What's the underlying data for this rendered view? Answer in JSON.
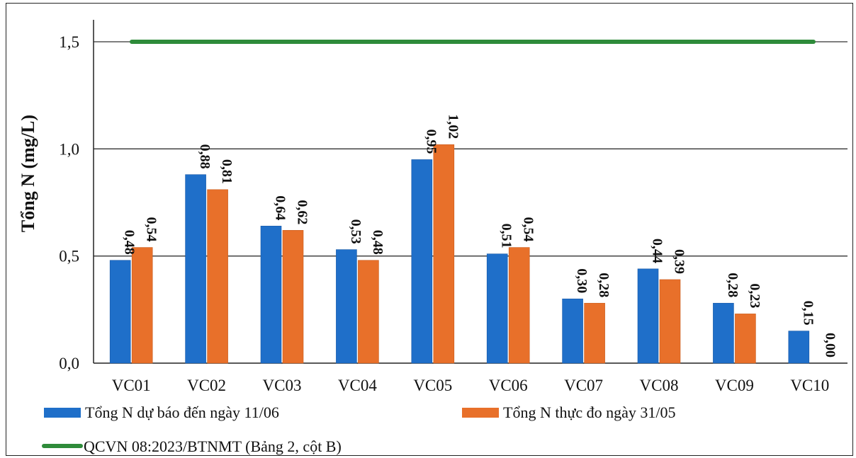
{
  "chart_data": {
    "type": "bar",
    "title": "",
    "xlabel": "",
    "ylabel": "Tổng N (mg/L)",
    "ylim": [
      0,
      1.6
    ],
    "yticks": [
      "0,0",
      "0,5",
      "1,0",
      "1,5"
    ],
    "ytick_values": [
      0,
      0.5,
      1.0,
      1.5
    ],
    "grid": true,
    "legend_placement": "bottom",
    "categories": [
      "VC01",
      "VC02",
      "VC03",
      "VC04",
      "VC05",
      "VC06",
      "VC07",
      "VC08",
      "VC09",
      "VC10"
    ],
    "series": [
      {
        "name": "Tổng N dự báo đến ngày 11/06",
        "color": "#1f6fc9",
        "values": [
          0.48,
          0.88,
          0.64,
          0.53,
          0.95,
          0.51,
          0.3,
          0.44,
          0.28,
          0.15
        ],
        "labels": [
          "0,48",
          "0,88",
          "0,64",
          "0,53",
          "0,95",
          "0,51",
          "0,30",
          "0,44",
          "0,28",
          "0,15"
        ]
      },
      {
        "name": "Tổng N thực đo ngày 31/05",
        "color": "#e8702a",
        "values": [
          0.54,
          0.81,
          0.62,
          0.48,
          1.02,
          0.54,
          0.28,
          0.39,
          0.23,
          0.0
        ],
        "labels": [
          "0,54",
          "0,81",
          "0,62",
          "0,48",
          "1,02",
          "0,54",
          "0,28",
          "0,39",
          "0,23",
          "0,00"
        ]
      }
    ],
    "threshold": {
      "name": "QCVN 08:2023/BTNMT (Bảng 2, cột B)",
      "value": 1.5,
      "color": "#2e8b3a"
    }
  }
}
